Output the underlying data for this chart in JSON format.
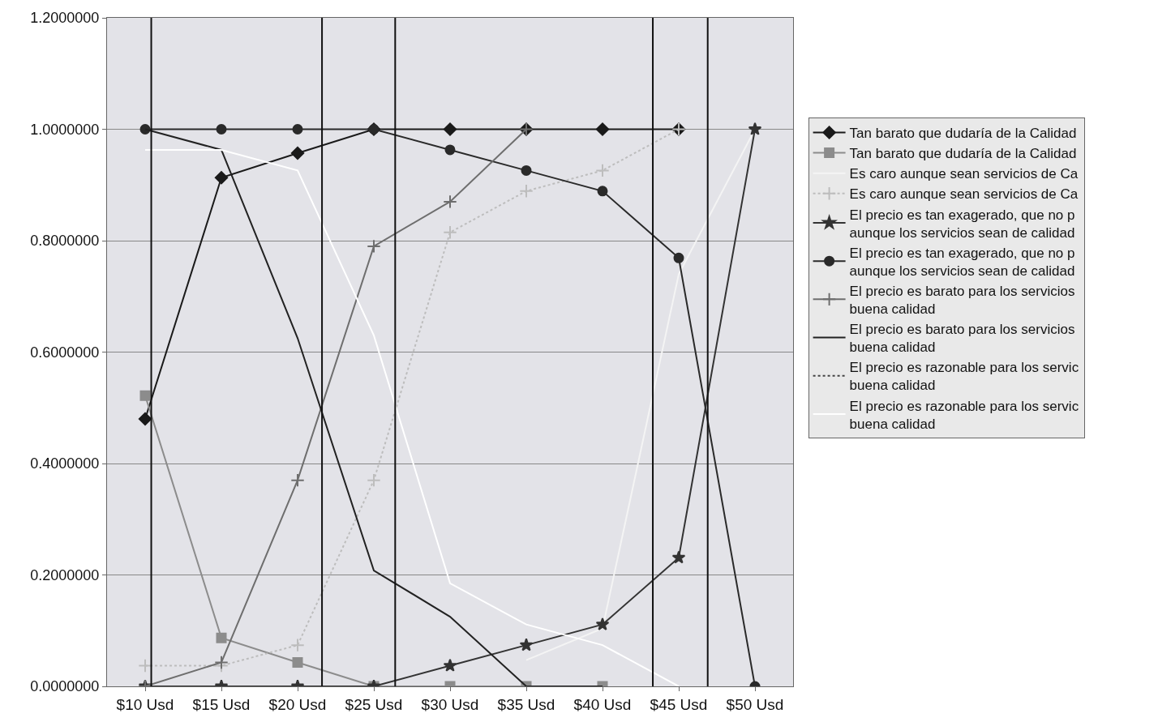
{
  "chart_data": {
    "type": "line",
    "x": [
      10,
      15,
      20,
      25,
      30,
      35,
      40,
      45,
      50
    ],
    "xlim": [
      7.5,
      52.5
    ],
    "xticks": [
      {
        "value": 10,
        "label": "$10 Usd"
      },
      {
        "value": 15,
        "label": "$15 Usd"
      },
      {
        "value": 20,
        "label": "$20 Usd"
      },
      {
        "value": 25,
        "label": "$25 Usd"
      },
      {
        "value": 30,
        "label": "$30 Usd"
      },
      {
        "value": 35,
        "label": "$35 Usd"
      },
      {
        "value": 40,
        "label": "$40 Usd"
      },
      {
        "value": 45,
        "label": "$45 Usd"
      },
      {
        "value": 50,
        "label": "$50 Usd"
      }
    ],
    "ylim": [
      0,
      1.2
    ],
    "yticks": [
      {
        "value": 0,
        "label": "0.0000000"
      },
      {
        "value": 0.2,
        "label": "0.2000000"
      },
      {
        "value": 0.4,
        "label": "0.4000000"
      },
      {
        "value": 0.6,
        "label": "0.6000000"
      },
      {
        "value": 0.8,
        "label": "0.8000000"
      },
      {
        "value": 1.0,
        "label": "1.0000000"
      },
      {
        "value": 1.2,
        "label": "1.2000000"
      }
    ],
    "grid": "y",
    "legend": "right",
    "series": [
      {
        "name": "Tan barato que dudaría de la Calidad",
        "color": "#1a1a1a",
        "marker": "diamond",
        "line_style": "solid",
        "values": [
          0.48,
          0.913,
          0.957,
          1.0,
          1.0,
          1.0,
          1.0,
          1.0,
          null
        ]
      },
      {
        "name": "Tan barato que dudaría de la Calidad",
        "color": "#8c8c8c",
        "marker": "square",
        "line_style": "solid",
        "values": [
          0.522,
          0.087,
          0.043,
          0.0,
          0.0,
          0.0,
          0.0,
          null,
          null
        ]
      },
      {
        "name": "Es caro aunque sean servicios de Ca",
        "color": "#f4f4f4",
        "marker": "none",
        "line_style": "solid",
        "values": [
          null,
          null,
          null,
          null,
          null,
          0.047,
          0.104,
          0.74,
          1.0
        ]
      },
      {
        "name": "Es caro aunque sean servicios de Ca",
        "color": "#bdbdbd",
        "marker": "cross",
        "line_style": "dotted",
        "values": [
          0.037,
          0.037,
          0.074,
          0.37,
          0.815,
          0.889,
          0.926,
          1.0,
          null
        ]
      },
      {
        "name": "El precio es tan exagerado, que no p\naunque los servicios sean de calidad",
        "color": "#333333",
        "marker": "star",
        "line_style": "solid",
        "values": [
          0.0,
          0.0,
          0.0,
          0.0,
          0.037,
          0.074,
          0.111,
          0.231,
          1.0
        ]
      },
      {
        "name": "El precio es tan exagerado, que no p\naunque los servicios sean de calidad",
        "color": "#2a2a2a",
        "marker": "circle",
        "line_style": "solid",
        "values": [
          1.0,
          1.0,
          1.0,
          1.0,
          0.963,
          0.926,
          0.889,
          0.769,
          0.0
        ]
      },
      {
        "name": "El precio es barato para los servicios\nbuena calidad",
        "color": "#6e6e6e",
        "marker": "cross",
        "line_style": "solid",
        "values": [
          0.0,
          0.043,
          0.37,
          0.79,
          0.87,
          1.0,
          null,
          null,
          null
        ]
      },
      {
        "name": "El precio es barato para los servicios\nbuena calidad",
        "color": "#222222",
        "marker": "none",
        "line_style": "solid",
        "values": [
          1.0,
          0.963,
          0.625,
          0.208,
          0.125,
          0.0,
          0.0,
          null,
          null
        ]
      },
      {
        "name": "El precio es razonable para los servic\nbuena calidad",
        "color": "#444444",
        "marker": "none",
        "line_style": "dotted",
        "values": [
          null,
          null,
          null,
          null,
          null,
          null,
          null,
          null,
          null
        ]
      },
      {
        "name": "El precio es razonable para los servic\nbuena calidad",
        "color": "#ffffff",
        "marker": "none",
        "line_style": "solid",
        "values": [
          0.963,
          0.963,
          0.926,
          0.63,
          0.185,
          0.111,
          0.074,
          0.0,
          null
        ]
      }
    ],
    "ref_lines": [
      {
        "axis": "x",
        "value": 10.4,
        "color": "#111111"
      },
      {
        "axis": "x",
        "value": 21.6,
        "color": "#111111"
      },
      {
        "axis": "x",
        "value": 26.4,
        "color": "#111111"
      },
      {
        "axis": "x",
        "value": 43.3,
        "color": "#111111"
      },
      {
        "axis": "x",
        "value": 46.9,
        "color": "#111111"
      }
    ]
  }
}
